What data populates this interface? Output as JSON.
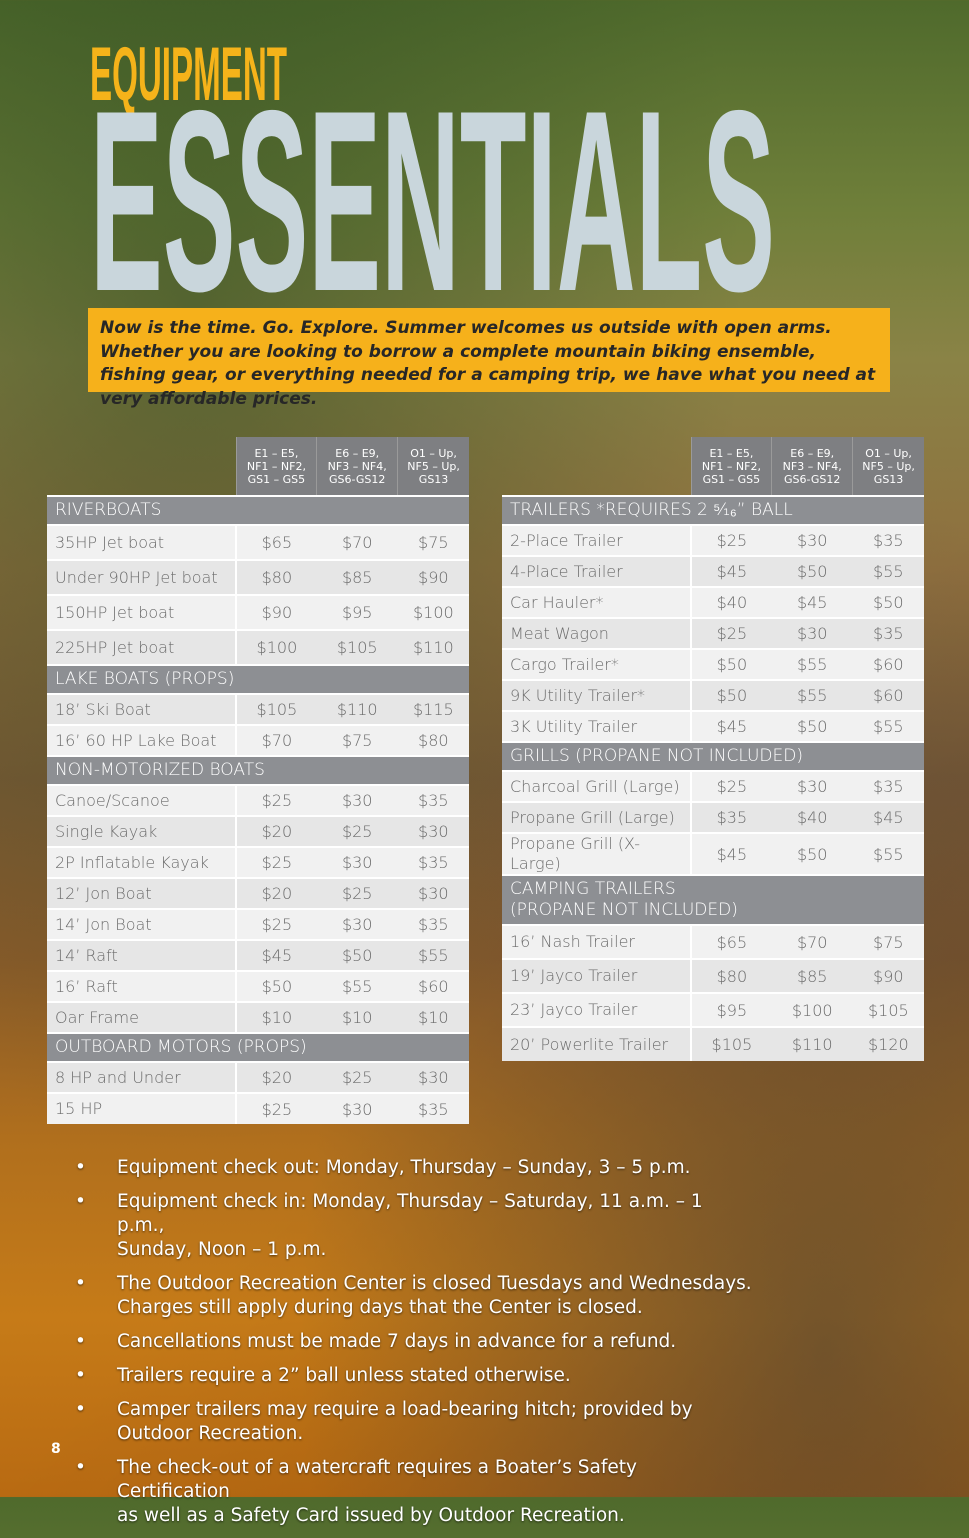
{
  "header": {
    "title_top": "EQUIPMENT",
    "title_main": "ESSENTIALS",
    "intro": "Now is the time. Go. Explore. Summer welcomes us outside with open arms. Whether you are looking to borrow a complete mountain biking ensemble, fishing gear, or everything needed for a camping trip, we have what you need at very affordable prices."
  },
  "left_table": {
    "columns": [
      "E1 – E5,\nNF1 – NF2,\nGS1 – GS5",
      "E6 – E9,\nNF3 – NF4,\nGS6-GS12",
      "O1 – Up,\nNF5 – Up,\nGS13"
    ],
    "sections": [
      {
        "name": "RIVERBOATS",
        "rows": [
          [
            "35HP Jet boat",
            "$65",
            "$70",
            "$75"
          ],
          [
            "Under 90HP Jet boat",
            "$80",
            "$85",
            "$90"
          ],
          [
            "150HP Jet boat",
            "$90",
            "$95",
            "$100"
          ],
          [
            "225HP Jet boat",
            "$100",
            "$105",
            "$110"
          ]
        ]
      },
      {
        "name": "LAKE BOATS (PROPS)",
        "rows": [
          [
            "18’ Ski Boat",
            "$105",
            "$110",
            "$115"
          ],
          [
            "16’ 60 HP Lake Boat",
            "$70",
            "$75",
            "$80"
          ]
        ]
      },
      {
        "name": "NON-MOTORIZED BOATS",
        "rows": [
          [
            "Canoe/Scanoe",
            "$25",
            "$30",
            "$35"
          ],
          [
            "Single Kayak",
            "$20",
            "$25",
            "$30"
          ],
          [
            "2P Inflatable Kayak",
            "$25",
            "$30",
            "$35"
          ],
          [
            "12’ Jon Boat",
            "$20",
            "$25",
            "$30"
          ],
          [
            "14’ Jon Boat",
            "$25",
            "$30",
            "$35"
          ],
          [
            "14’ Raft",
            "$45",
            "$50",
            "$55"
          ],
          [
            "16’ Raft",
            "$50",
            "$55",
            "$60"
          ],
          [
            "Oar Frame",
            "$10",
            "$10",
            "$10"
          ]
        ]
      },
      {
        "name": "OUTBOARD MOTORS (PROPS)",
        "rows": [
          [
            "8 HP and Under",
            "$20",
            "$25",
            "$30"
          ],
          [
            "15 HP",
            "$25",
            "$30",
            "$35"
          ]
        ]
      }
    ]
  },
  "right_table": {
    "columns": [
      "E1 – E5,\nNF1 – NF2,\nGS1 – GS5",
      "E6 – E9,\nNF3 – NF4,\nGS6-GS12",
      "O1 – Up,\nNF5 – Up,\nGS13"
    ],
    "sections": [
      {
        "name": "TRAILERS   *REQUIRES 2 ⁵⁄₁₆” BALL",
        "rows": [
          [
            "2-Place Trailer",
            "$25",
            "$30",
            "$35"
          ],
          [
            "4-Place Trailer",
            "$45",
            "$50",
            "$55"
          ],
          [
            "Car Hauler*",
            "$40",
            "$45",
            "$50"
          ],
          [
            "Meat Wagon",
            "$25",
            "$30",
            "$35"
          ],
          [
            "Cargo Trailer*",
            "$50",
            "$55",
            "$60"
          ],
          [
            "9K Utility Trailer*",
            "$50",
            "$55",
            "$60"
          ],
          [
            "3K Utility Trailer",
            "$45",
            "$50",
            "$55"
          ]
        ]
      },
      {
        "name": "GRILLS (PROPANE NOT INCLUDED)",
        "rows": [
          [
            "Charcoal Grill (Large)",
            "$25",
            "$30",
            "$35"
          ],
          [
            "Propane Grill (Large)",
            "$35",
            "$40",
            "$45"
          ],
          [
            "Propane Grill (X-Large)",
            "$45",
            "$50",
            "$55"
          ]
        ]
      },
      {
        "name": "CAMPING TRAILERS\n(PROPANE NOT INCLUDED)",
        "rows": [
          [
            "16’ Nash Trailer",
            "$65",
            "$70",
            "$75"
          ],
          [
            "19’ Jayco Trailer",
            "$80",
            "$85",
            "$90"
          ],
          [
            "23’ Jayco Trailer",
            "$95",
            "$100",
            "$105"
          ],
          [
            "20’ Powerlite Trailer",
            "$105",
            "$110",
            "$120"
          ]
        ]
      }
    ]
  },
  "notes": [
    "Equipment check out: Monday, Thursday – Sunday, 3 – 5 p.m.",
    "Equipment check in: Monday, Thursday – Saturday, 11 a.m. – 1 p.m.,\nSunday, Noon – 1 p.m.",
    "The Outdoor Recreation Center is closed Tuesdays and Wednesdays.\nCharges still apply during days that the Center is closed.",
    "Cancellations must be made 7 days in advance for a refund.",
    "Trailers require a 2” ball unless stated otherwise.",
    "Camper trailers may require a load-bearing hitch; provided by Outdoor Recreation.",
    "The check-out of a watercraft requires a Boater’s Safety Certification\nas well as a Safety Card issued by Outdoor Recreation."
  ],
  "page_number": "8"
}
